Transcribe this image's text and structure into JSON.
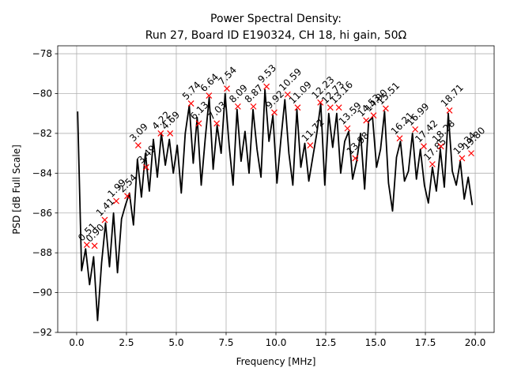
{
  "chart_data": {
    "type": "line",
    "title": "Power Spectral Density:",
    "subtitle": "Run 27, Board ID E190324, CH 18, hi gain, 50Ω",
    "x_label": "Frequency [MHz]",
    "y_label": "PSD [dB Full Scale]",
    "grid": true,
    "color": "#000000",
    "xlim": [
      -0.95,
      20.95
    ],
    "ylim": [
      -92.0,
      -77.6
    ],
    "xticks": [
      {
        "value": 0,
        "label": "0.0"
      },
      2.5,
      {
        "value": 5,
        "label": "5.0"
      },
      7.5,
      {
        "value": 10,
        "label": "10.0"
      },
      12.5,
      {
        "value": 15,
        "label": "15.0"
      },
      17.5,
      {
        "value": 20,
        "label": "20.0"
      }
    ],
    "yticks": [
      {
        "value": -92,
        "label": "−92"
      },
      {
        "value": -90,
        "label": "−90"
      },
      {
        "value": -88,
        "label": "−88"
      },
      {
        "value": -86,
        "label": "−86"
      },
      {
        "value": -84,
        "label": "−84"
      },
      {
        "value": -82,
        "label": "−82"
      },
      {
        "value": -80,
        "label": "−80"
      },
      {
        "value": -78,
        "label": "−78"
      }
    ],
    "x": [
      0.05,
      0.25,
      0.45,
      0.65,
      0.85,
      1.05,
      1.25,
      1.45,
      1.65,
      1.85,
      2.05,
      2.25,
      2.45,
      2.65,
      2.85,
      3.05,
      3.25,
      3.45,
      3.65,
      3.85,
      4.05,
      4.25,
      4.45,
      4.65,
      4.85,
      5.05,
      5.25,
      5.45,
      5.65,
      5.85,
      6.05,
      6.25,
      6.45,
      6.65,
      6.85,
      7.05,
      7.25,
      7.45,
      7.65,
      7.85,
      8.05,
      8.25,
      8.45,
      8.65,
      8.85,
      9.05,
      9.25,
      9.45,
      9.65,
      9.85,
      10.05,
      10.25,
      10.45,
      10.65,
      10.85,
      11.05,
      11.25,
      11.45,
      11.65,
      11.85,
      12.05,
      12.25,
      12.45,
      12.65,
      12.85,
      13.05,
      13.25,
      13.45,
      13.65,
      13.85,
      14.05,
      14.25,
      14.45,
      14.65,
      14.85,
      15.05,
      15.25,
      15.45,
      15.65,
      15.85,
      16.05,
      16.25,
      16.45,
      16.65,
      16.85,
      17.05,
      17.25,
      17.45,
      17.65,
      17.85,
      18.05,
      18.25,
      18.45,
      18.65,
      18.85,
      19.05,
      19.25,
      19.45,
      19.65,
      19.85
    ],
    "values": [
      -80.9,
      -88.9,
      -87.8,
      -89.6,
      -88.2,
      -91.4,
      -88.5,
      -86.5,
      -88.7,
      -86.0,
      -89.0,
      -86.3,
      -85.6,
      -85.0,
      -86.6,
      -83.3,
      -85.2,
      -83.0,
      -84.9,
      -82.3,
      -84.2,
      -82.0,
      -83.6,
      -82.3,
      -84.0,
      -82.6,
      -85.0,
      -82.0,
      -80.6,
      -83.5,
      -81.2,
      -84.6,
      -82.3,
      -80.2,
      -83.8,
      -81.6,
      -83.0,
      -80.0,
      -82.6,
      -84.6,
      -80.8,
      -83.4,
      -81.9,
      -84.0,
      -80.8,
      -82.8,
      -84.2,
      -79.8,
      -82.4,
      -81.1,
      -84.5,
      -82.3,
      -80.3,
      -83.0,
      -84.6,
      -80.8,
      -83.7,
      -82.5,
      -84.4,
      -83.2,
      -82.0,
      -80.5,
      -84.6,
      -81.0,
      -82.7,
      -81.0,
      -84.0,
      -82.4,
      -81.9,
      -84.3,
      -83.4,
      -82.0,
      -84.8,
      -81.4,
      -81.2,
      -83.7,
      -82.8,
      -80.9,
      -84.5,
      -85.9,
      -83.2,
      -82.4,
      -84.4,
      -83.9,
      -82.0,
      -84.3,
      -82.8,
      -84.6,
      -85.5,
      -83.7,
      -84.9,
      -82.8,
      -84.7,
      -81.0,
      -83.9,
      -84.6,
      -83.4,
      -85.3,
      -84.2,
      -85.6
    ],
    "markers": {
      "color": "#ff0000",
      "x": [
        0.51,
        0.9,
        1.41,
        1.99,
        2.54,
        3.09,
        3.49,
        4.22,
        4.69,
        5.74,
        6.13,
        6.64,
        7.03,
        7.54,
        8.09,
        8.87,
        9.53,
        9.92,
        10.59,
        11.09,
        11.72,
        12.23,
        12.73,
        13.16,
        13.59,
        13.98,
        14.53,
        14.9,
        15.51,
        16.21,
        16.99,
        17.42,
        17.85,
        18.28,
        18.71,
        19.34,
        19.8
      ],
      "values": [
        -87.6,
        -87.65,
        -86.35,
        -85.4,
        -85.15,
        -82.6,
        -83.7,
        -82.0,
        -82.0,
        -80.5,
        -81.5,
        -80.1,
        -81.5,
        -79.75,
        -80.65,
        -80.65,
        -79.65,
        -80.95,
        -80.05,
        -80.7,
        -82.6,
        -80.45,
        -80.7,
        -80.7,
        -81.75,
        -83.25,
        -81.35,
        -81.1,
        -80.75,
        -82.25,
        -81.8,
        -82.65,
        -83.55,
        -82.65,
        -80.85,
        -83.25,
        -83.0
      ],
      "labels": [
        "0.51",
        "0.90",
        "1.41",
        "1.99",
        "2.54",
        "3.09",
        "3.49",
        "4.22",
        "4.69",
        "5.74",
        "6.13",
        "6.64",
        "7.03",
        "7.54",
        "8.09",
        "8.87",
        "9.53",
        "9.92",
        "10.59",
        "11.09",
        "11.72",
        "12.23",
        "12.73",
        "13.16",
        "13.59",
        "13.98",
        "14.53",
        "14.90",
        "15.51",
        "16.21",
        "16.99",
        "17.42",
        "17.85",
        "18.28",
        "18.71",
        "19.34",
        "19.80"
      ]
    }
  }
}
